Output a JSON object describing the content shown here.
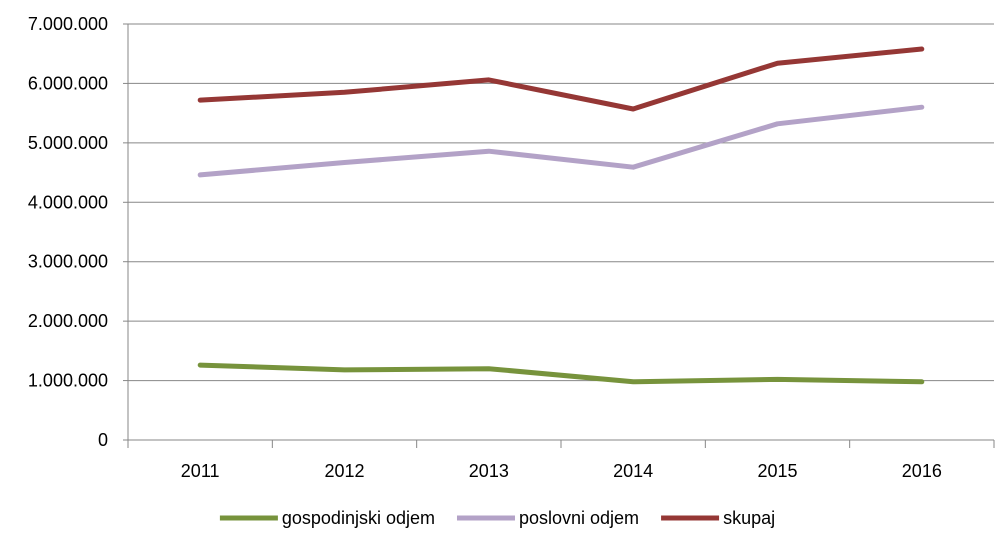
{
  "chart_data": {
    "type": "line",
    "title": "",
    "xlabel": "",
    "ylabel": "",
    "categories": [
      "2011",
      "2012",
      "2013",
      "2014",
      "2015",
      "2016"
    ],
    "ylim": [
      0,
      7000000
    ],
    "y_ticks": [
      0,
      1000000,
      2000000,
      3000000,
      4000000,
      5000000,
      6000000,
      7000000
    ],
    "y_tick_labels": [
      "0",
      "1.000.000",
      "2.000.000",
      "3.000.000",
      "4.000.000",
      "5.000.000",
      "6.000.000",
      "7.000.000"
    ],
    "grid": "horizontal",
    "legend_position": "bottom",
    "series": [
      {
        "name": "gospodinjski odjem",
        "color": "#77933C",
        "values": [
          1260000,
          1180000,
          1200000,
          980000,
          1020000,
          980000
        ]
      },
      {
        "name": "poslovni odjem",
        "color": "#B3A2C7",
        "values": [
          4460000,
          4670000,
          4860000,
          4590000,
          5320000,
          5600000
        ]
      },
      {
        "name": "skupaj",
        "color": "#953735",
        "values": [
          5720000,
          5850000,
          6060000,
          5570000,
          6340000,
          6580000
        ]
      }
    ]
  }
}
